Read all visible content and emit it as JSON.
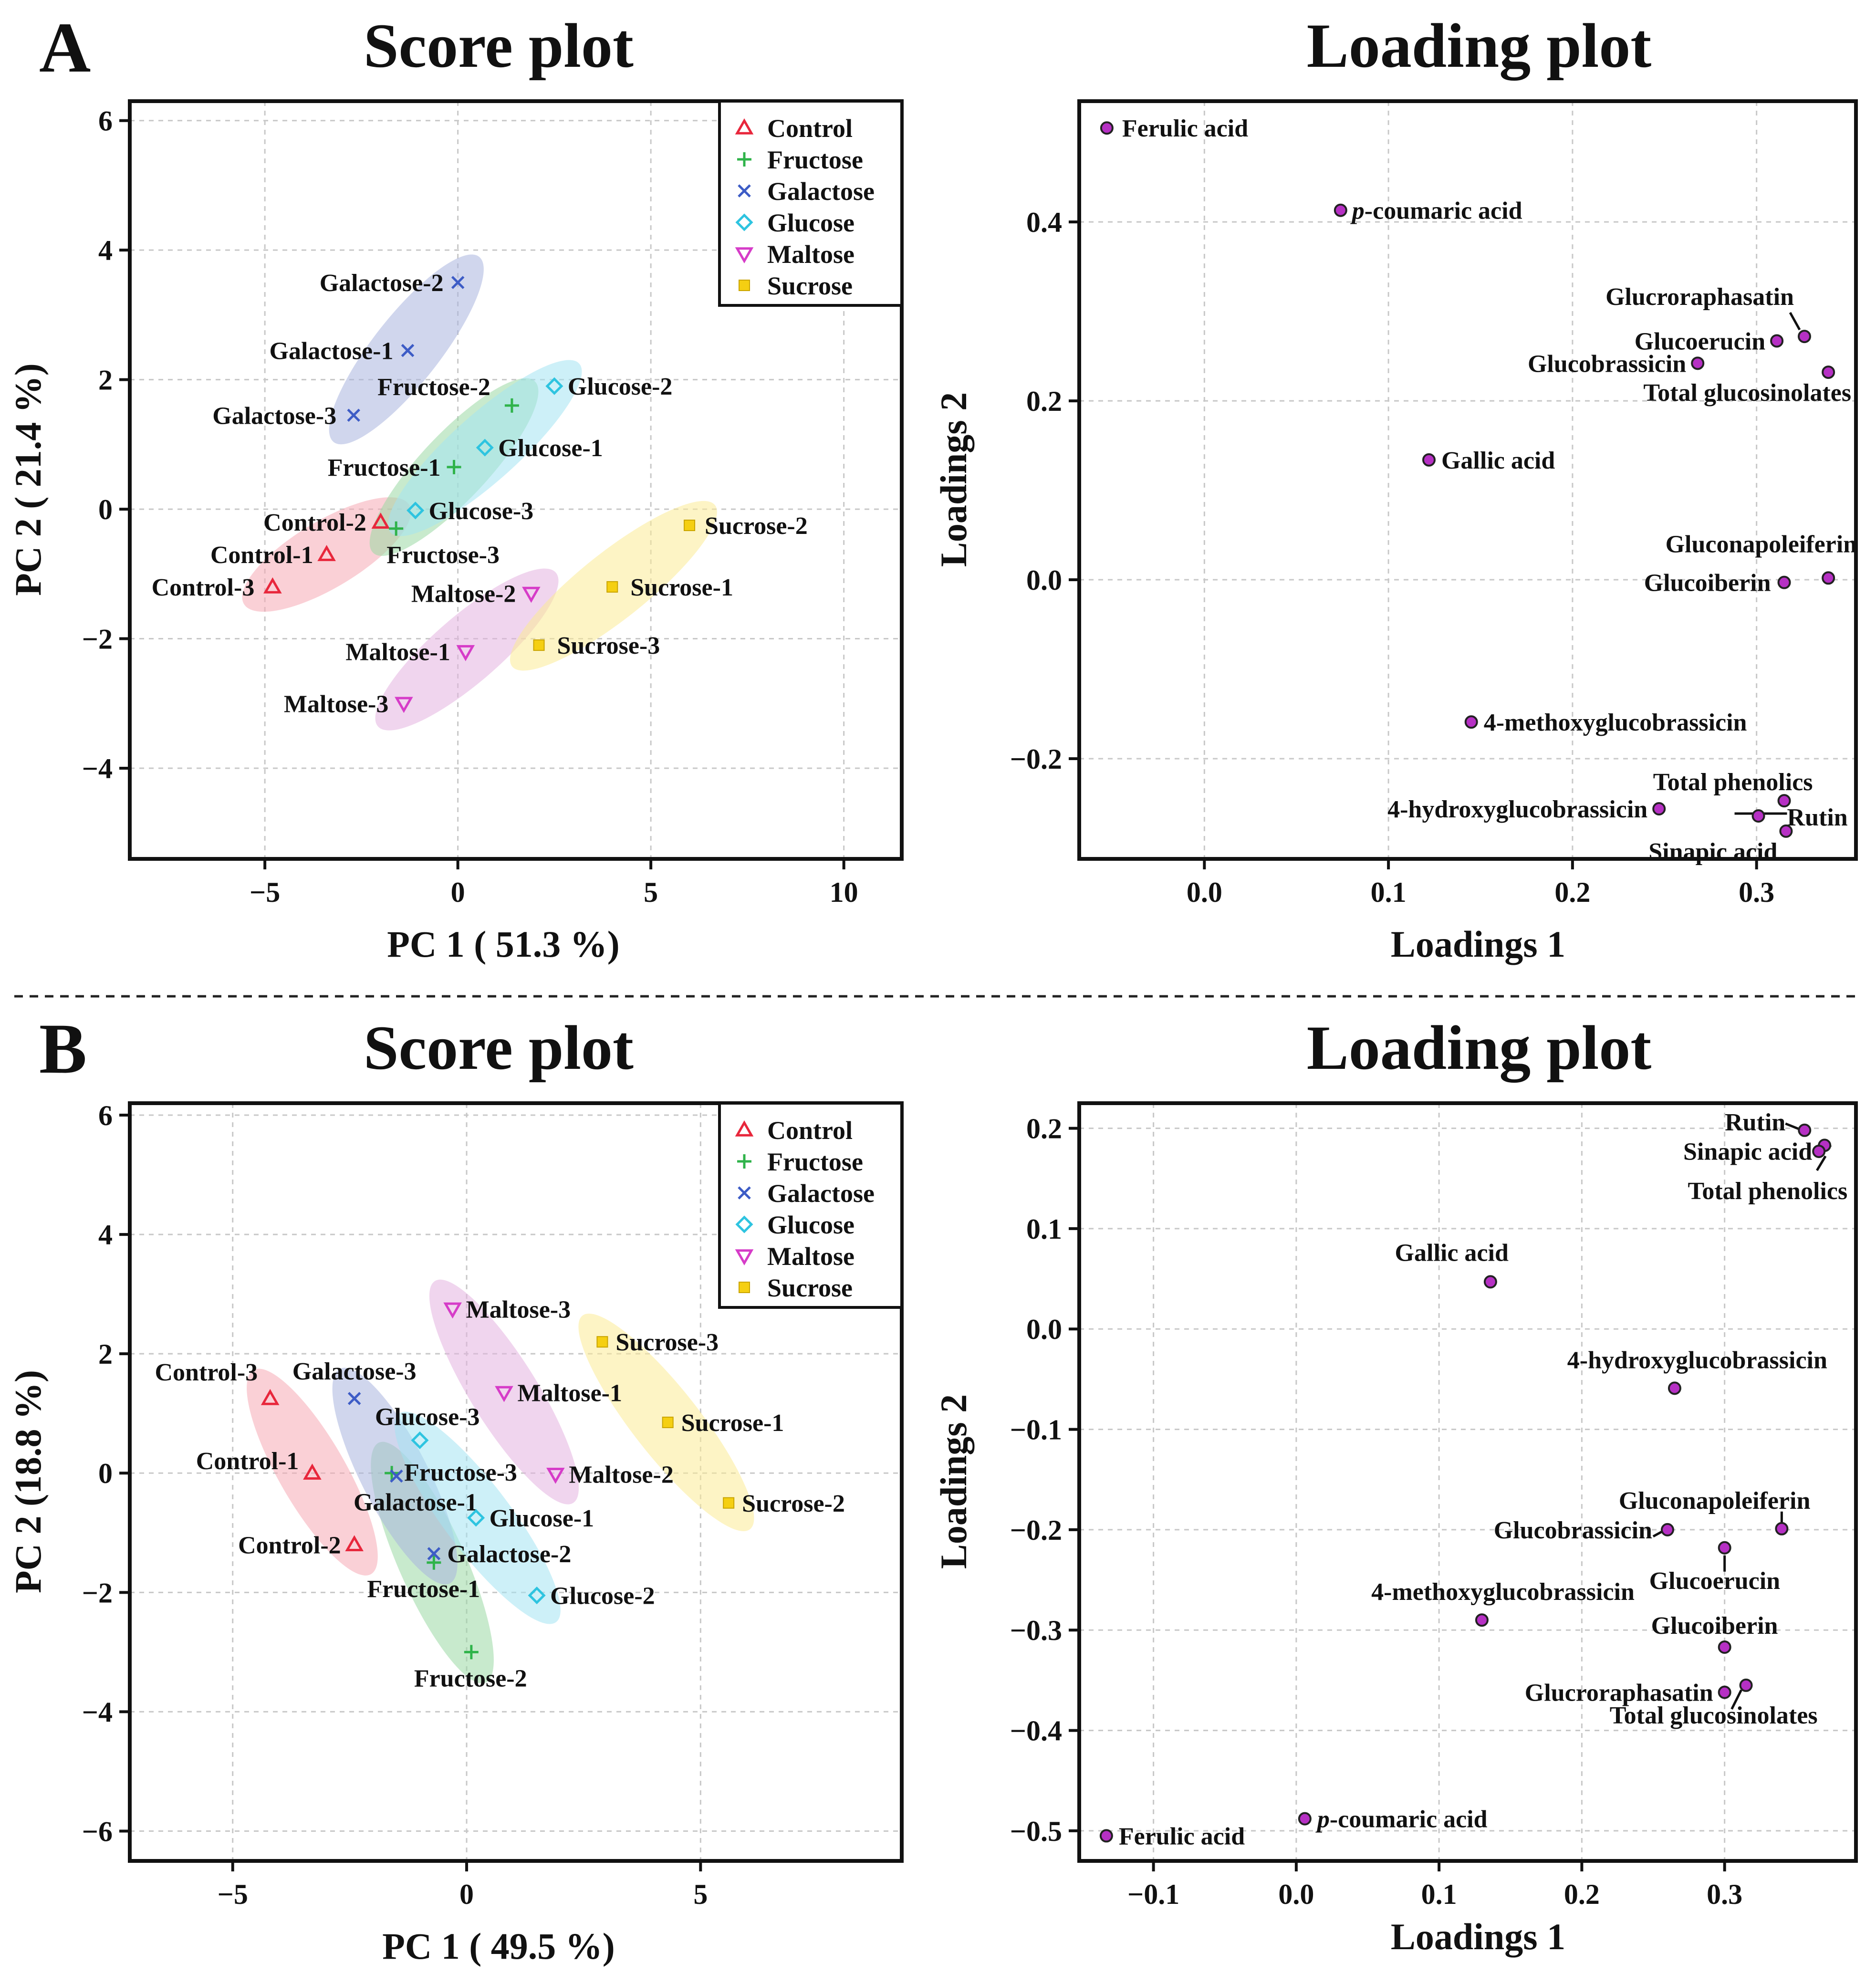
{
  "figure": {
    "divider": "dashed",
    "panels": [
      {
        "label": "A"
      },
      {
        "label": "B"
      }
    ]
  },
  "groups": [
    {
      "name": "Control",
      "color": "#e8273c",
      "marker": "triangle-up",
      "ellipse": "#f5a9b4"
    },
    {
      "name": "Fructose",
      "color": "#2fb34a",
      "marker": "plus",
      "ellipse": "#9bd9a4"
    },
    {
      "name": "Galactose",
      "color": "#3d5cc6",
      "marker": "cross",
      "ellipse": "#a9b5de"
    },
    {
      "name": "Glucose",
      "color": "#2ec4e0",
      "marker": "diamond",
      "ellipse": "#a4e4f2"
    },
    {
      "name": "Maltose",
      "color": "#d63cc8",
      "marker": "triangle-down",
      "ellipse": "#e4b3e0"
    },
    {
      "name": "Sucrose",
      "color": "#f5cf12",
      "marker": "square",
      "ellipse": "#fbeb96"
    }
  ],
  "loading_point_color": "#b630c4",
  "chart_data": [
    {
      "type": "scatter",
      "panel": "A",
      "title": "Score plot",
      "xlabel": "PC 1 ( 51.3 %)",
      "ylabel": "PC 2 ( 21.4 %)",
      "xlim": [
        -8.5,
        11.5
      ],
      "ylim": [
        -5.4,
        6.3
      ],
      "xticks": [
        -5,
        0,
        5,
        10
      ],
      "xtick_labels": [
        "−5",
        "0",
        "5",
        "10"
      ],
      "yticks": [
        -4,
        -2,
        0,
        2,
        4,
        6
      ],
      "ytick_labels": [
        "−4",
        "−2",
        "0",
        "2",
        "4",
        "6"
      ],
      "grid": true,
      "legend": "top-right",
      "points": [
        {
          "label": "Control-1",
          "group": 0,
          "x": -3.4,
          "y": -0.7
        },
        {
          "label": "Control-2",
          "group": 0,
          "x": -2.0,
          "y": -0.2
        },
        {
          "label": "Control-3",
          "group": 0,
          "x": -4.8,
          "y": -1.2
        },
        {
          "label": "Fructose-1",
          "group": 1,
          "x": -0.1,
          "y": 0.65
        },
        {
          "label": "Fructose-2",
          "group": 1,
          "x": 1.4,
          "y": 1.6
        },
        {
          "label": "Fructose-3",
          "group": 1,
          "x": -1.6,
          "y": -0.3
        },
        {
          "label": "Galactose-1",
          "group": 2,
          "x": -1.3,
          "y": 2.45
        },
        {
          "label": "Galactose-2",
          "group": 2,
          "x": 0.0,
          "y": 3.5
        },
        {
          "label": "Galactose-3",
          "group": 2,
          "x": -2.7,
          "y": 1.45
        },
        {
          "label": "Glucose-1",
          "group": 3,
          "x": 0.7,
          "y": 0.95
        },
        {
          "label": "Glucose-2",
          "group": 3,
          "x": 2.5,
          "y": 1.9
        },
        {
          "label": "Glucose-3",
          "group": 3,
          "x": -1.1,
          "y": -0.02
        },
        {
          "label": "Maltose-1",
          "group": 4,
          "x": 0.2,
          "y": -2.2
        },
        {
          "label": "Maltose-2",
          "group": 4,
          "x": 1.9,
          "y": -1.3
        },
        {
          "label": "Maltose-3",
          "group": 4,
          "x": -1.4,
          "y": -3.0
        },
        {
          "label": "Sucrose-1",
          "group": 5,
          "x": 4.0,
          "y": -1.2
        },
        {
          "label": "Sucrose-2",
          "group": 5,
          "x": 6.0,
          "y": -0.25
        },
        {
          "label": "Sucrose-3",
          "group": 5,
          "x": 2.1,
          "y": -2.1
        }
      ]
    },
    {
      "type": "scatter",
      "panel": "A",
      "title": "Loading plot",
      "xlabel": "Loadings 1",
      "ylabel": "Loadings 2",
      "xlim": [
        -0.068,
        0.354
      ],
      "ylim": [
        -0.312,
        0.535
      ],
      "xticks": [
        0.0,
        0.1,
        0.2,
        0.3
      ],
      "xtick_labels": [
        "0.0",
        "0.1",
        "0.2",
        "0.3"
      ],
      "yticks": [
        -0.2,
        0.0,
        0.2,
        0.4
      ],
      "ytick_labels": [
        "−0.2",
        "0.0",
        "0.2",
        "0.4"
      ],
      "grid": true,
      "points": [
        {
          "label": "Ferulic acid",
          "x": -0.053,
          "y": 0.505
        },
        {
          "label": "p-coumaric acid",
          "x": 0.074,
          "y": 0.413
        },
        {
          "label": "Glucroraphasatin",
          "x": 0.326,
          "y": 0.272
        },
        {
          "label": "Glucoerucin",
          "x": 0.311,
          "y": 0.267
        },
        {
          "label": "Glucobrassicin",
          "x": 0.268,
          "y": 0.242
        },
        {
          "label": "Total glucosinolates",
          "x": 0.339,
          "y": 0.232
        },
        {
          "label": "Gallic acid",
          "x": 0.122,
          "y": 0.134
        },
        {
          "label": "Gluconapoleiferin",
          "x": 0.339,
          "y": 0.002
        },
        {
          "label": "Glucoiberin",
          "x": 0.315,
          "y": -0.003
        },
        {
          "label": "4-methoxyglucobrassicin",
          "x": 0.145,
          "y": -0.159
        },
        {
          "label": "Total phenolics",
          "x": 0.315,
          "y": -0.247
        },
        {
          "label": "4-hydroxyglucobrassicin",
          "x": 0.247,
          "y": -0.256
        },
        {
          "label": "Rutin",
          "x": 0.301,
          "y": -0.264
        },
        {
          "label": "Sinapic acid",
          "x": 0.316,
          "y": -0.281
        }
      ]
    },
    {
      "type": "scatter",
      "panel": "B",
      "title": "Score plot",
      "xlabel": "PC 1 ( 49.5 %)",
      "ylabel": "PC 2 (18.8 %)",
      "xlim": [
        -7.2,
        9.3
      ],
      "ylim": [
        -6.5,
        6.2
      ],
      "xticks": [
        -5,
        0,
        5
      ],
      "xtick_labels": [
        "−5",
        "0",
        "5"
      ],
      "yticks": [
        -6,
        -4,
        -2,
        0,
        2,
        4,
        6
      ],
      "ytick_labels": [
        "−6",
        "−4",
        "−2",
        "0",
        "2",
        "4",
        "6"
      ],
      "grid": true,
      "legend": "top-right",
      "points": [
        {
          "label": "Control-1",
          "group": 0,
          "x": -3.3,
          "y": 0.0
        },
        {
          "label": "Control-2",
          "group": 0,
          "x": -2.4,
          "y": -1.2
        },
        {
          "label": "Control-3",
          "group": 0,
          "x": -4.2,
          "y": 1.25
        },
        {
          "label": "Fructose-1",
          "group": 1,
          "x": -0.7,
          "y": -1.5
        },
        {
          "label": "Fructose-2",
          "group": 1,
          "x": 0.1,
          "y": -3.0
        },
        {
          "label": "Fructose-3",
          "group": 1,
          "x": -1.6,
          "y": 0.0
        },
        {
          "label": "Galactose-1",
          "group": 2,
          "x": -1.5,
          "y": -0.05
        },
        {
          "label": "Galactose-2",
          "group": 2,
          "x": -0.7,
          "y": -1.35
        },
        {
          "label": "Galactose-3",
          "group": 2,
          "x": -2.4,
          "y": 1.25
        },
        {
          "label": "Glucose-1",
          "group": 3,
          "x": 0.2,
          "y": -0.75
        },
        {
          "label": "Glucose-2",
          "group": 3,
          "x": 1.5,
          "y": -2.05
        },
        {
          "label": "Glucose-3",
          "group": 3,
          "x": -1.0,
          "y": 0.55
        },
        {
          "label": "Maltose-1",
          "group": 4,
          "x": 0.8,
          "y": 1.35
        },
        {
          "label": "Maltose-2",
          "group": 4,
          "x": 1.9,
          "y": -0.02
        },
        {
          "label": "Maltose-3",
          "group": 4,
          "x": -0.3,
          "y": 2.75
        },
        {
          "label": "Sucrose-1",
          "group": 5,
          "x": 4.3,
          "y": 0.85
        },
        {
          "label": "Sucrose-2",
          "group": 5,
          "x": 5.6,
          "y": -0.5
        },
        {
          "label": "Sucrose-3",
          "group": 5,
          "x": 2.9,
          "y": 2.2
        }
      ]
    },
    {
      "type": "scatter",
      "panel": "B",
      "title": "Loading plot",
      "xlabel": "Loadings 1",
      "ylabel": "Loadings 2",
      "xlim": [
        -0.152,
        0.392
      ],
      "ylim": [
        -0.53,
        0.225
      ],
      "xticks": [
        -0.1,
        0.0,
        0.1,
        0.2,
        0.3
      ],
      "xtick_labels": [
        "−0.1",
        "0.0",
        "0.1",
        "0.2",
        "0.3"
      ],
      "yticks": [
        -0.5,
        -0.4,
        -0.3,
        -0.2,
        -0.1,
        0.0,
        0.1,
        0.2
      ],
      "ytick_labels": [
        "−0.5",
        "−0.4",
        "−0.3",
        "−0.2",
        "−0.1",
        "0.0",
        "0.1",
        "0.2"
      ],
      "grid": true,
      "points": [
        {
          "label": "Rutin",
          "x": 0.356,
          "y": 0.198
        },
        {
          "label": "Sinapic acid",
          "x": 0.37,
          "y": 0.183
        },
        {
          "label": "Total phenolics",
          "x": 0.366,
          "y": 0.177
        },
        {
          "label": "Gallic acid",
          "x": 0.136,
          "y": 0.047
        },
        {
          "label": "4-hydroxyglucobrassicin",
          "x": 0.265,
          "y": -0.059
        },
        {
          "label": "Gluconapoleiferin",
          "x": 0.34,
          "y": -0.199
        },
        {
          "label": "Glucobrassicin",
          "x": 0.26,
          "y": -0.2
        },
        {
          "label": "Glucoerucin",
          "x": 0.3,
          "y": -0.218
        },
        {
          "label": "4-methoxyglucobrassicin",
          "x": 0.13,
          "y": -0.29
        },
        {
          "label": "Glucoiberin",
          "x": 0.3,
          "y": -0.317
        },
        {
          "label": "Glucroraphasatin",
          "x": 0.3,
          "y": -0.362
        },
        {
          "label": "Total glucosinolates",
          "x": 0.315,
          "y": -0.355
        },
        {
          "label": "p-coumaric acid",
          "x": 0.006,
          "y": -0.488
        },
        {
          "label": "Ferulic acid",
          "x": -0.133,
          "y": -0.505
        }
      ]
    }
  ]
}
